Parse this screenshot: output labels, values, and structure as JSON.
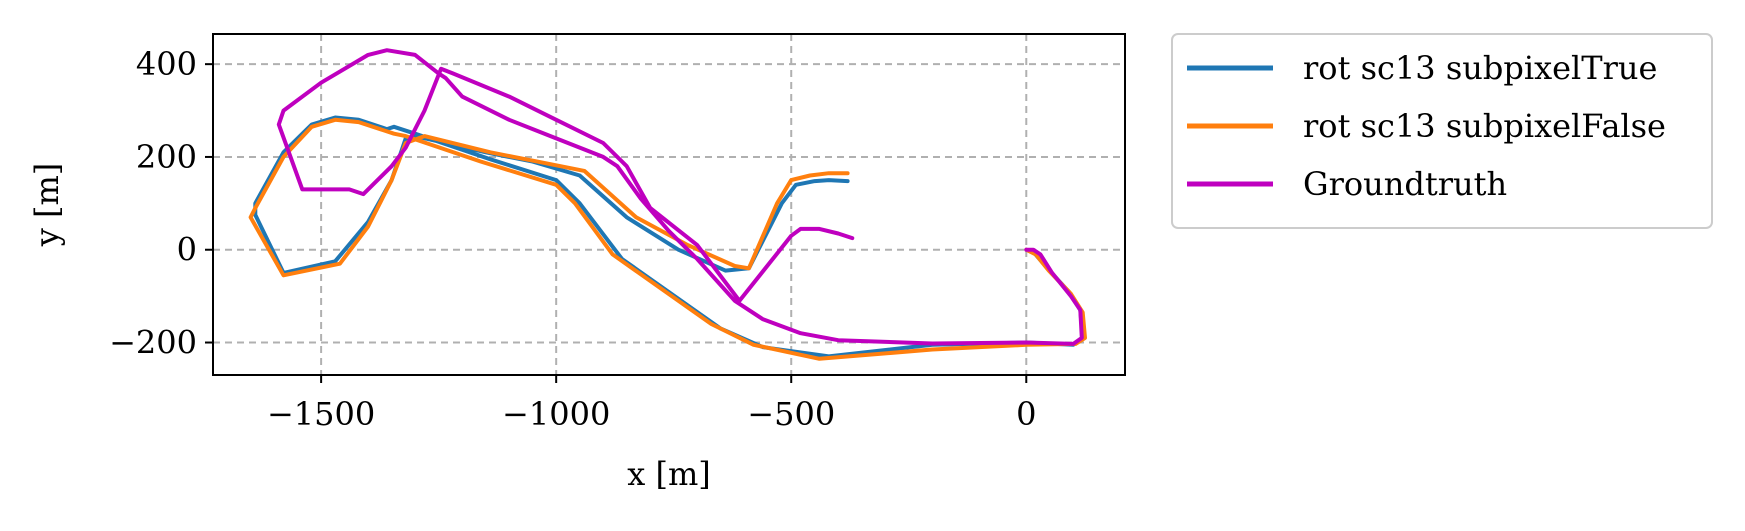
{
  "chart_data": {
    "type": "line",
    "title": "",
    "xlabel": "x [m]",
    "ylabel": "y [m]",
    "xlim": [
      -1730,
      210
    ],
    "ylim": [
      -270,
      465
    ],
    "x_ticks": [
      -1500,
      -1000,
      -500,
      0
    ],
    "x_tick_labels": [
      "−1500",
      "−1000",
      "−500",
      "0"
    ],
    "y_ticks": [
      -200,
      0,
      200,
      400
    ],
    "y_tick_labels": [
      "−200",
      "0",
      "200",
      "400"
    ],
    "grid": true,
    "grid_style": "dashed",
    "legend_position": "outside upper right",
    "series": [
      {
        "name": "rot sc13 subpixelTrue",
        "color": "#1f77b4",
        "points": [
          [
            0,
            0
          ],
          [
            18,
            -8
          ],
          [
            45,
            -40
          ],
          [
            90,
            -90
          ],
          [
            115,
            -130
          ],
          [
            120,
            -190
          ],
          [
            100,
            -205
          ],
          [
            0,
            -200
          ],
          [
            -200,
            -205
          ],
          [
            -420,
            -230
          ],
          [
            -560,
            -210
          ],
          [
            -650,
            -170
          ],
          [
            -860,
            -20
          ],
          [
            -950,
            100
          ],
          [
            -1000,
            150
          ],
          [
            -1140,
            195
          ],
          [
            -1300,
            250
          ],
          [
            -1345,
            265
          ],
          [
            -1360,
            260
          ],
          [
            -1420,
            280
          ],
          [
            -1470,
            285
          ],
          [
            -1520,
            270
          ],
          [
            -1580,
            210
          ],
          [
            -1640,
            100
          ],
          [
            -1640,
            75
          ],
          [
            -1580,
            -50
          ],
          [
            -1470,
            -25
          ],
          [
            -1400,
            60
          ],
          [
            -1350,
            150
          ],
          [
            -1320,
            240
          ],
          [
            -1300,
            245
          ],
          [
            -1150,
            210
          ],
          [
            -1050,
            190
          ],
          [
            -950,
            160
          ],
          [
            -850,
            70
          ],
          [
            -740,
            0
          ],
          [
            -640,
            -45
          ],
          [
            -590,
            -40
          ],
          [
            -520,
            100
          ],
          [
            -490,
            140
          ],
          [
            -450,
            148
          ],
          [
            -420,
            150
          ],
          [
            -380,
            148
          ]
        ]
      },
      {
        "name": "rot sc13 subpixelFalse",
        "color": "#ff7f0e",
        "points": [
          [
            0,
            0
          ],
          [
            20,
            -10
          ],
          [
            48,
            -45
          ],
          [
            95,
            -95
          ],
          [
            120,
            -135
          ],
          [
            125,
            -190
          ],
          [
            105,
            -203
          ],
          [
            0,
            -205
          ],
          [
            -200,
            -215
          ],
          [
            -440,
            -235
          ],
          [
            -580,
            -205
          ],
          [
            -670,
            -160
          ],
          [
            -880,
            -10
          ],
          [
            -960,
            100
          ],
          [
            -1000,
            140
          ],
          [
            -1160,
            190
          ],
          [
            -1320,
            245
          ],
          [
            -1345,
            250
          ],
          [
            -1360,
            255
          ],
          [
            -1420,
            275
          ],
          [
            -1470,
            280
          ],
          [
            -1520,
            265
          ],
          [
            -1580,
            200
          ],
          [
            -1640,
            90
          ],
          [
            -1650,
            70
          ],
          [
            -1580,
            -55
          ],
          [
            -1460,
            -30
          ],
          [
            -1400,
            50
          ],
          [
            -1350,
            150
          ],
          [
            -1320,
            230
          ],
          [
            -1280,
            245
          ],
          [
            -1140,
            210
          ],
          [
            -1040,
            190
          ],
          [
            -940,
            170
          ],
          [
            -830,
            70
          ],
          [
            -720,
            10
          ],
          [
            -620,
            -35
          ],
          [
            -590,
            -40
          ],
          [
            -530,
            100
          ],
          [
            -500,
            150
          ],
          [
            -460,
            160
          ],
          [
            -420,
            165
          ],
          [
            -380,
            165
          ]
        ]
      },
      {
        "name": "Groundtruth",
        "color": "#bf00bf",
        "points": [
          [
            0,
            0
          ],
          [
            15,
            0
          ],
          [
            30,
            -10
          ],
          [
            55,
            -50
          ],
          [
            95,
            -100
          ],
          [
            115,
            -130
          ],
          [
            118,
            -190
          ],
          [
            100,
            -203
          ],
          [
            0,
            -200
          ],
          [
            -200,
            -202
          ],
          [
            -400,
            -195
          ],
          [
            -480,
            -180
          ],
          [
            -560,
            -150
          ],
          [
            -620,
            -110
          ],
          [
            -700,
            -20
          ],
          [
            -760,
            40
          ],
          [
            -820,
            110
          ],
          [
            -870,
            180
          ],
          [
            -900,
            200
          ],
          [
            -1000,
            240
          ],
          [
            -1100,
            280
          ],
          [
            -1200,
            330
          ],
          [
            -1235,
            370
          ],
          [
            -1250,
            380
          ],
          [
            -1300,
            420
          ],
          [
            -1360,
            430
          ],
          [
            -1400,
            420
          ],
          [
            -1500,
            360
          ],
          [
            -1580,
            300
          ],
          [
            -1590,
            270
          ],
          [
            -1540,
            130
          ],
          [
            -1460,
            130
          ],
          [
            -1440,
            130
          ],
          [
            -1410,
            120
          ],
          [
            -1350,
            180
          ],
          [
            -1320,
            220
          ],
          [
            -1280,
            300
          ],
          [
            -1245,
            390
          ],
          [
            -1220,
            380
          ],
          [
            -1100,
            330
          ],
          [
            -1000,
            280
          ],
          [
            -900,
            230
          ],
          [
            -850,
            180
          ],
          [
            -800,
            90
          ],
          [
            -700,
            10
          ],
          [
            -610,
            -110
          ],
          [
            -500,
            30
          ],
          [
            -480,
            45
          ],
          [
            -440,
            45
          ],
          [
            -400,
            35
          ],
          [
            -370,
            25
          ]
        ]
      }
    ]
  }
}
